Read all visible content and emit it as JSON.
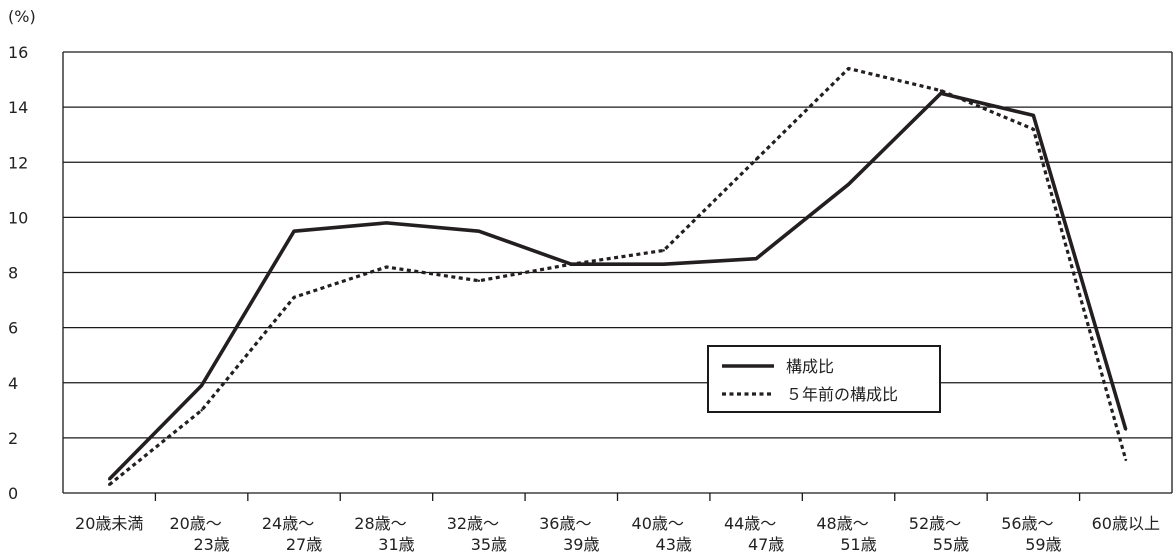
{
  "chart_data": {
    "type": "line",
    "unit_label": "(%)",
    "categories": [
      [
        "20歳未満"
      ],
      [
        "20歳～",
        "23歳"
      ],
      [
        "24歳～",
        "27歳"
      ],
      [
        "28歳～",
        "31歳"
      ],
      [
        "32歳～",
        "35歳"
      ],
      [
        "36歳～",
        "39歳"
      ],
      [
        "40歳～",
        "43歳"
      ],
      [
        "44歳～",
        "47歳"
      ],
      [
        "48歳～",
        "51歳"
      ],
      [
        "52歳～",
        "55歳"
      ],
      [
        "56歳～",
        "59歳"
      ],
      [
        "60歳以上"
      ]
    ],
    "ylim": [
      0,
      16
    ],
    "yticks": [
      "0",
      "2",
      "4",
      "6",
      "8",
      "10",
      "12",
      "14",
      "16"
    ],
    "grid": true,
    "legend_position": "bottom-right",
    "series": [
      {
        "name": "構成比",
        "style": "solid",
        "color": "#231f20",
        "values": [
          0.5,
          3.9,
          9.5,
          9.8,
          9.5,
          8.3,
          8.3,
          8.5,
          11.2,
          14.5,
          13.7,
          2.3
        ]
      },
      {
        "name": "５年前の構成比",
        "style": "dotted",
        "color": "#231f20",
        "values": [
          0.3,
          3.0,
          7.1,
          8.2,
          7.7,
          8.3,
          8.8,
          12.1,
          15.4,
          14.6,
          13.2,
          1.2
        ]
      }
    ]
  }
}
